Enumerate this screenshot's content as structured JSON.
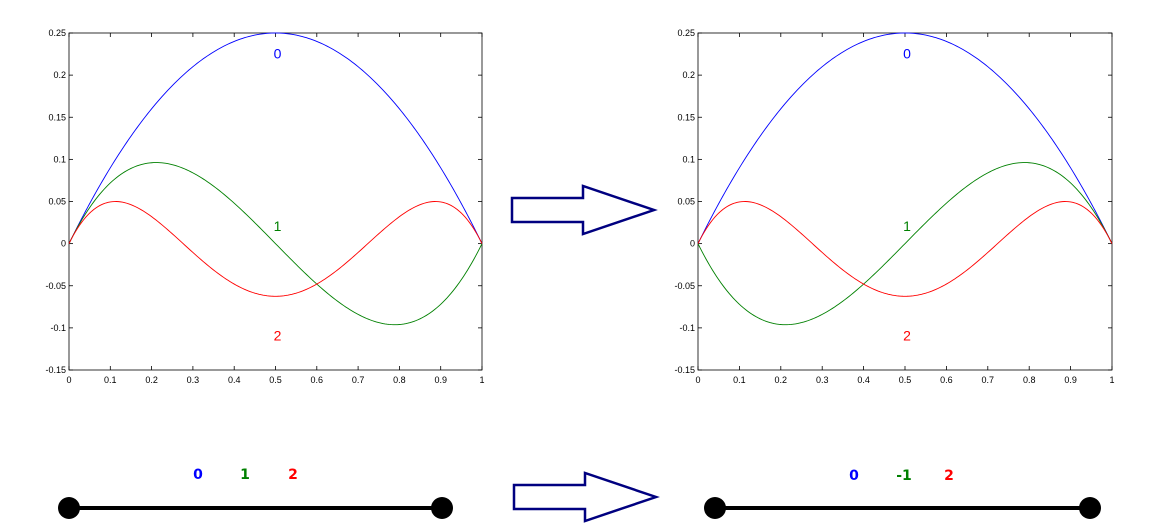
{
  "chart_data": [
    {
      "type": "line",
      "title": "",
      "xlabel": "",
      "ylabel": "",
      "xlim": [
        0,
        1
      ],
      "ylim": [
        -0.15,
        0.25
      ],
      "xticks": [
        "0",
        "0.1",
        "0.2",
        "0.3",
        "0.4",
        "0.5",
        "0.6",
        "0.7",
        "0.8",
        "0.9",
        "1"
      ],
      "yticks": [
        "-0.15",
        "-0.1",
        "-0.05",
        "0",
        "0.05",
        "0.1",
        "0.15",
        "0.2",
        "0.25"
      ],
      "series": [
        {
          "label": "0",
          "color": "#0000ff",
          "basis": "x(1-x)",
          "sign": 1,
          "label_x": 0.5,
          "label_y": 0.22
        },
        {
          "label": "1",
          "color": "#008000",
          "basis": "x(1-x)(1-2x)",
          "sign": 1,
          "label_x": 0.5,
          "label_y": 0.015
        },
        {
          "label": "2",
          "color": "#ff0000",
          "basis": "x(1-x)(1-5x+5x^2)",
          "sign": 1,
          "label_x": 0.5,
          "label_y": -0.115
        }
      ]
    },
    {
      "type": "line",
      "title": "",
      "xlabel": "",
      "ylabel": "",
      "xlim": [
        0,
        1
      ],
      "ylim": [
        -0.15,
        0.25
      ],
      "xticks": [
        "0",
        "0.1",
        "0.2",
        "0.3",
        "0.4",
        "0.5",
        "0.6",
        "0.7",
        "0.8",
        "0.9",
        "1"
      ],
      "yticks": [
        "-0.15",
        "-0.1",
        "-0.05",
        "0",
        "0.05",
        "0.1",
        "0.15",
        "0.2",
        "0.25"
      ],
      "series": [
        {
          "label": "0",
          "color": "#0000ff",
          "basis": "x(1-x)",
          "sign": 1,
          "label_x": 0.5,
          "label_y": 0.22
        },
        {
          "label": "1",
          "color": "#008000",
          "basis": "x(1-x)(1-2x)",
          "sign": -1,
          "label_x": 0.5,
          "label_y": 0.015
        },
        {
          "label": "2",
          "color": "#ff0000",
          "basis": "x(1-x)(1-5x+5x^2)",
          "sign": 1,
          "label_x": 0.5,
          "label_y": -0.115
        }
      ]
    }
  ],
  "segments": [
    {
      "labels": [
        {
          "text": "0",
          "color": "#0000ff"
        },
        {
          "text": "1",
          "color": "#008000"
        },
        {
          "text": "2",
          "color": "#ff0000"
        }
      ]
    },
    {
      "labels": [
        {
          "text": "0",
          "color": "#0000ff"
        },
        {
          "text": "-1",
          "color": "#008000"
        },
        {
          "text": "2",
          "color": "#ff0000"
        }
      ]
    }
  ],
  "arrow_color": "#000080"
}
